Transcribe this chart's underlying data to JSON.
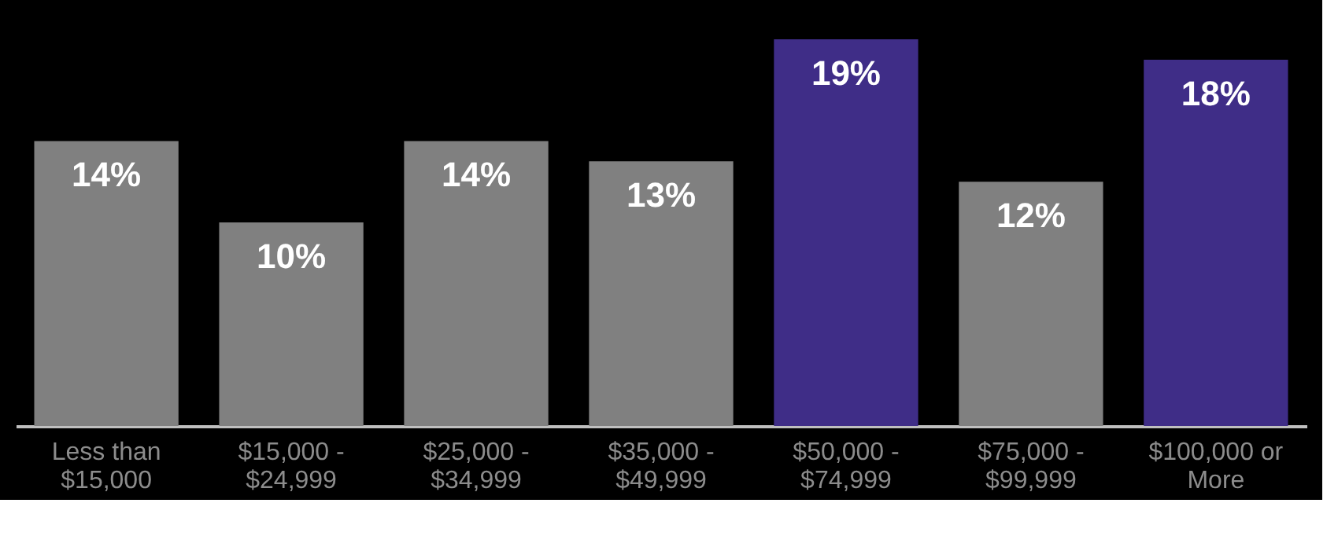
{
  "chart_data": {
    "type": "bar",
    "categories": [
      "Less than\n$15,000",
      "$15,000 -\n$24,999",
      "$25,000 -\n$34,999",
      "$35,000 -\n$49,999",
      "$50,000 -\n$74,999",
      "$75,000 -\n$99,999",
      "$100,000 or\nMore"
    ],
    "values": [
      14,
      10,
      14,
      13,
      19,
      12,
      18
    ],
    "value_labels": [
      "14%",
      "10%",
      "14%",
      "13%",
      "19%",
      "12%",
      "18%"
    ],
    "colors": [
      "#808080",
      "#808080",
      "#808080",
      "#808080",
      "#3f2d87",
      "#808080",
      "#3f2d87"
    ]
  }
}
